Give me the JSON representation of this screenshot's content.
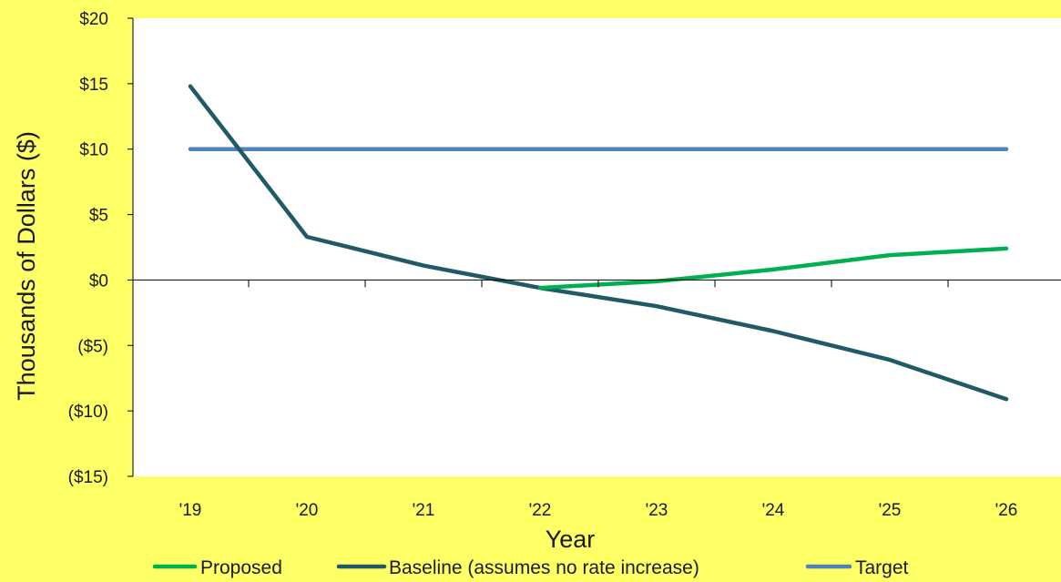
{
  "chart_data": {
    "type": "line",
    "title": "",
    "xlabel": "Year",
    "ylabel": "Thousands of Dollars ($)",
    "categories": [
      "'19",
      "'20",
      "'21",
      "'22",
      "'23",
      "'24",
      "'25",
      "'26"
    ],
    "ylim": [
      -15,
      20
    ],
    "yticks": [
      {
        "value": 20,
        "label": "$20"
      },
      {
        "value": 15,
        "label": "$15"
      },
      {
        "value": 10,
        "label": "$10"
      },
      {
        "value": 5,
        "label": "$5"
      },
      {
        "value": 0,
        "label": "$0"
      },
      {
        "value": -5,
        "label": "($5)"
      },
      {
        "value": -10,
        "label": "($10)"
      },
      {
        "value": -15,
        "label": "($15)"
      }
    ],
    "grid": false,
    "legend_position": "bottom",
    "series": [
      {
        "name": "Proposed",
        "color": "#00b050",
        "values": [
          null,
          null,
          null,
          -0.6,
          -0.1,
          0.8,
          1.9,
          2.4
        ]
      },
      {
        "name": "Baseline (assumes no rate increase)",
        "color": "#215967",
        "values": [
          14.8,
          3.3,
          1.1,
          -0.6,
          -2.0,
          -3.9,
          -6.1,
          -9.1
        ]
      },
      {
        "name": "Target",
        "color": "#4f81bd",
        "values": [
          10,
          10,
          10,
          10,
          10,
          10,
          10,
          10
        ]
      }
    ]
  }
}
